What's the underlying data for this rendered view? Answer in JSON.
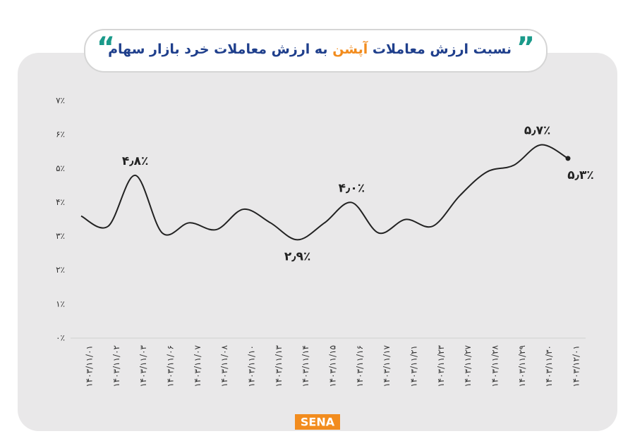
{
  "chart_data": {
    "type": "line",
    "title": [
      {
        "text": "نسبت ارزش معاملات",
        "color": "#1f3f8c"
      },
      {
        "text": "آپشن",
        "color": "#f28c1e"
      },
      {
        "text": "به ارزش معاملات خرد بازار سهام",
        "color": "#1f3f8c"
      }
    ],
    "categories": [
      "۱۴۰۳/۱۱/۰۱",
      "۱۴۰۳/۱۱/۰۲",
      "۱۴۰۳/۱۱/۰۳",
      "۱۴۰۳/۱۱/۰۶",
      "۱۴۰۳/۱۱/۰۷",
      "۱۴۰۳/۱۱/۰۸",
      "۱۴۰۳/۱۱/۱۰",
      "۱۴۰۳/۱۱/۱۳",
      "۱۴۰۳/۱۱/۱۴",
      "۱۴۰۳/۱۱/۱۵",
      "۱۴۰۳/۱۱/۱۶",
      "۱۴۰۳/۱۱/۱۷",
      "۱۴۰۳/۱۱/۲۱",
      "۱۴۰۳/۱۱/۲۳",
      "۱۴۰۳/۱۱/۲۷",
      "۱۴۰۳/۱۱/۲۸",
      "۱۴۰۳/۱۱/۲۹",
      "۱۴۰۳/۱۱/۳۰",
      "۱۴۰۳/۱۲/۰۱"
    ],
    "values": [
      3.6,
      3.3,
      4.8,
      3.1,
      3.4,
      3.2,
      3.8,
      3.4,
      2.9,
      3.4,
      4.0,
      3.1,
      3.5,
      3.3,
      4.2,
      4.9,
      5.1,
      5.7,
      5.3
    ],
    "value_labels": [
      null,
      null,
      "۴٫۸٪",
      null,
      null,
      null,
      null,
      null,
      "۲٫۹٪",
      null,
      "۴٫۰٪",
      null,
      null,
      null,
      null,
      null,
      null,
      "۵٫۷٪",
      "۵٫۳٪"
    ],
    "color": "#222222",
    "ylim": [
      0,
      7
    ],
    "yticks": [
      {
        "value": 0,
        "label": "۰٪"
      },
      {
        "value": 1,
        "label": "۱٪"
      },
      {
        "value": 2,
        "label": "۲٪"
      },
      {
        "value": 3,
        "label": "۳٪"
      },
      {
        "value": 4,
        "label": "۴٪"
      },
      {
        "value": 5,
        "label": "۵٪"
      },
      {
        "value": 6,
        "label": "۶٪"
      },
      {
        "value": 7,
        "label": "۷٪"
      }
    ],
    "logo": "SENA"
  }
}
